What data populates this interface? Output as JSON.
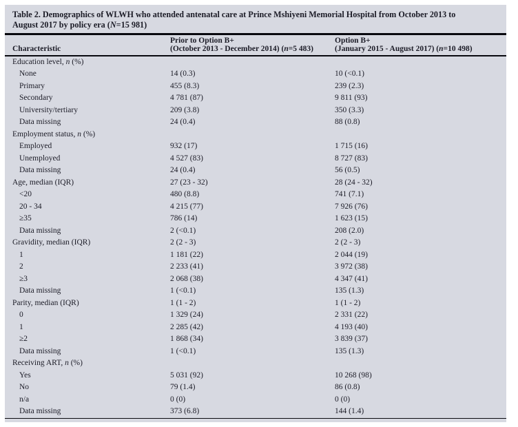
{
  "colors": {
    "panel_bg": "#d7d9e1",
    "text": "#1c1c27",
    "rule": "#08080e"
  },
  "title": {
    "line1": "Table 2. Demographics of WLWH who attended antenatal care at Prince Mshiyeni Memorial Hospital from October 2013 to",
    "line2_before_N": "August 2017 by policy era (",
    "N": "N",
    "line2_after_N": "=15 981)"
  },
  "header": {
    "characteristic": "Characteristic",
    "prior": {
      "line1": "Prior to Option B+",
      "line2_before_n": "(October 2013 - December 2014) (",
      "n": "n",
      "line2_after_n": "=5 483)"
    },
    "option": {
      "line1": "Option B+",
      "line2_before_n": "(January 2015 - August 2017) (",
      "n": "n",
      "line2_after_n": "=10 498)"
    }
  },
  "table": {
    "rows": [
      {
        "label": "Education level, ",
        "label_italic": "n",
        "label_suffix": " (%)",
        "indent": false,
        "prior": "",
        "option": ""
      },
      {
        "label": "None",
        "label_italic": "",
        "label_suffix": "",
        "indent": true,
        "prior": "14 (0.3)",
        "option": "10 (<0.1)"
      },
      {
        "label": "Primary",
        "label_italic": "",
        "label_suffix": "",
        "indent": true,
        "prior": "455 (8.3)",
        "option": "239 (2.3)"
      },
      {
        "label": "Secondary",
        "label_italic": "",
        "label_suffix": "",
        "indent": true,
        "prior": "4 781 (87)",
        "option": "9 811 (93)"
      },
      {
        "label": "University/tertiary",
        "label_italic": "",
        "label_suffix": "",
        "indent": true,
        "prior": "209 (3.8)",
        "option": "350 (3.3)"
      },
      {
        "label": "Data missing",
        "label_italic": "",
        "label_suffix": "",
        "indent": true,
        "prior": "24 (0.4)",
        "option": "88 (0.8)"
      },
      {
        "label": "Employment status, ",
        "label_italic": "n",
        "label_suffix": " (%)",
        "indent": false,
        "prior": "",
        "option": ""
      },
      {
        "label": "Employed",
        "label_italic": "",
        "label_suffix": "",
        "indent": true,
        "prior": "932 (17)",
        "option": "1 715 (16)"
      },
      {
        "label": "Unemployed",
        "label_italic": "",
        "label_suffix": "",
        "indent": true,
        "prior": "4 527 (83)",
        "option": "8 727 (83)"
      },
      {
        "label": "Data missing",
        "label_italic": "",
        "label_suffix": "",
        "indent": true,
        "prior": "24 (0.4)",
        "option": "56 (0.5)"
      },
      {
        "label": "Age, median (IQR)",
        "label_italic": "",
        "label_suffix": "",
        "indent": false,
        "prior": "27 (23 - 32)",
        "option": "28 (24 - 32)"
      },
      {
        "label": "<20",
        "label_italic": "",
        "label_suffix": "",
        "indent": true,
        "prior": "480 (8.8)",
        "option": "741 (7.1)"
      },
      {
        "label": "20 - 34",
        "label_italic": "",
        "label_suffix": "",
        "indent": true,
        "prior": "4 215 (77)",
        "option": "7 926 (76)"
      },
      {
        "label": "≥35",
        "label_italic": "",
        "label_suffix": "",
        "indent": true,
        "prior": "786 (14)",
        "option": "1 623 (15)"
      },
      {
        "label": "Data missing",
        "label_italic": "",
        "label_suffix": "",
        "indent": true,
        "prior": "2 (<0.1)",
        "option": "208 (2.0)"
      },
      {
        "label": "Gravidity, median (IQR)",
        "label_italic": "",
        "label_suffix": "",
        "indent": false,
        "prior": "2 (2 - 3)",
        "option": "2 (2 - 3)"
      },
      {
        "label": "1",
        "label_italic": "",
        "label_suffix": "",
        "indent": true,
        "prior": "1 181 (22)",
        "option": "2 044 (19)"
      },
      {
        "label": "2",
        "label_italic": "",
        "label_suffix": "",
        "indent": true,
        "prior": "2 233 (41)",
        "option": "3 972 (38)"
      },
      {
        "label": "≥3",
        "label_italic": "",
        "label_suffix": "",
        "indent": true,
        "prior": "2 068 (38)",
        "option": "4 347 (41)"
      },
      {
        "label": "Data missing",
        "label_italic": "",
        "label_suffix": "",
        "indent": true,
        "prior": "1 (<0.1)",
        "option": "135 (1.3)"
      },
      {
        "label": "Parity, median (IQR)",
        "label_italic": "",
        "label_suffix": "",
        "indent": false,
        "prior": "1 (1 - 2)",
        "option": "1 (1 - 2)"
      },
      {
        "label": "0",
        "label_italic": "",
        "label_suffix": "",
        "indent": true,
        "prior": "1 329 (24)",
        "option": "2 331 (22)"
      },
      {
        "label": "1",
        "label_italic": "",
        "label_suffix": "",
        "indent": true,
        "prior": "2 285 (42)",
        "option": "4 193 (40)"
      },
      {
        "label": "≥2",
        "label_italic": "",
        "label_suffix": "",
        "indent": true,
        "prior": "1 868 (34)",
        "option": "3 839 (37)"
      },
      {
        "label": "Data missing",
        "label_italic": "",
        "label_suffix": "",
        "indent": true,
        "prior": "1 (<0.1)",
        "option": "135 (1.3)"
      },
      {
        "label": "Receiving ART, ",
        "label_italic": "n",
        "label_suffix": " (%)",
        "indent": false,
        "prior": "",
        "option": ""
      },
      {
        "label": "Yes",
        "label_italic": "",
        "label_suffix": "",
        "indent": true,
        "prior": "5 031 (92)",
        "option": "10 268 (98)"
      },
      {
        "label": "No",
        "label_italic": "",
        "label_suffix": "",
        "indent": true,
        "prior": "79 (1.4)",
        "option": "86 (0.8)"
      },
      {
        "label": "n/a",
        "label_italic": "",
        "label_suffix": "",
        "indent": true,
        "prior": "0 (0)",
        "option": "0 (0)"
      },
      {
        "label": "Data missing",
        "label_italic": "",
        "label_suffix": "",
        "indent": true,
        "prior": "373 (6.8)",
        "option": "144 (1.4)"
      }
    ]
  }
}
